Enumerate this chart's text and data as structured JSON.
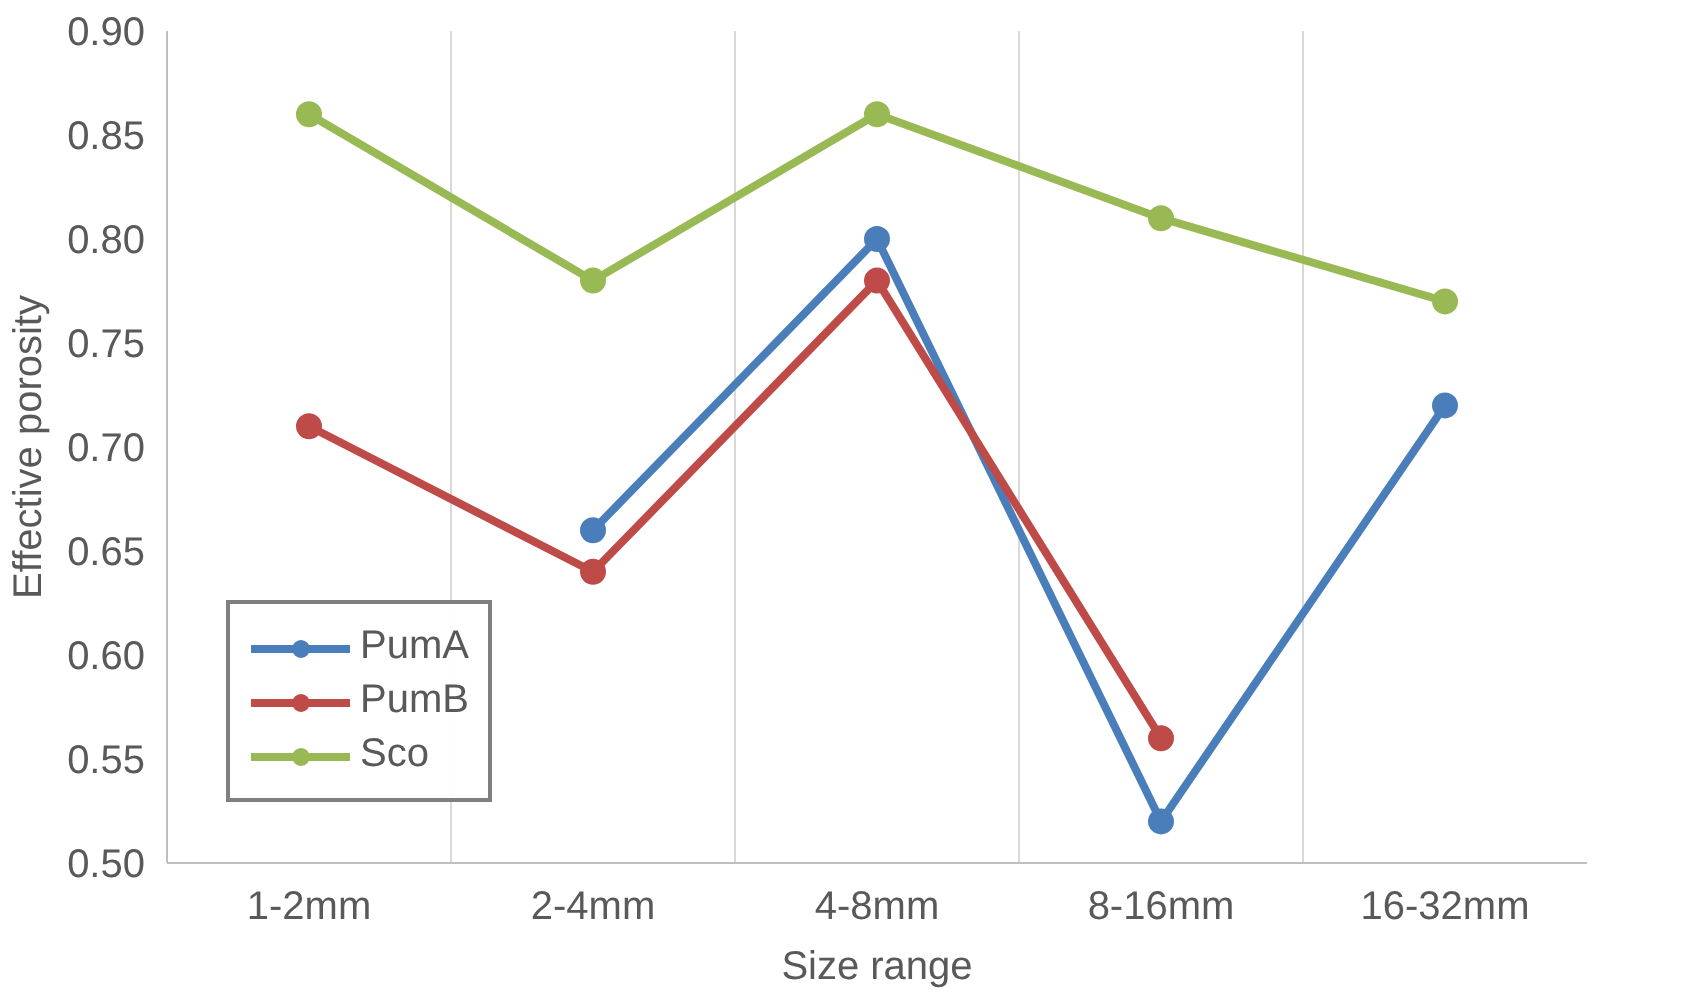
{
  "chart_data": {
    "type": "line",
    "xlabel": "Size range",
    "ylabel": "Effective porosity",
    "categories": [
      "1-2mm",
      "2-4mm",
      "4-8mm",
      "8-16mm",
      "16-32mm"
    ],
    "series": [
      {
        "name": "PumA",
        "color": "#4a7ebb",
        "values": [
          null,
          0.66,
          0.8,
          0.52,
          0.72
        ]
      },
      {
        "name": "PumB",
        "color": "#be4b48",
        "values": [
          0.71,
          0.64,
          0.78,
          0.56,
          null
        ]
      },
      {
        "name": "Sco",
        "color": "#98b954",
        "values": [
          0.86,
          0.78,
          0.86,
          0.81,
          0.77
        ]
      }
    ],
    "ylim": [
      0.5,
      0.9
    ],
    "yticks": [
      {
        "value": 0.5,
        "label": "0.50"
      },
      {
        "value": 0.55,
        "label": "0.55"
      },
      {
        "value": 0.6,
        "label": "0.60"
      },
      {
        "value": 0.65,
        "label": "0.65"
      },
      {
        "value": 0.7,
        "label": "0.70"
      },
      {
        "value": 0.75,
        "label": "0.75"
      },
      {
        "value": 0.8,
        "label": "0.80"
      },
      {
        "value": 0.85,
        "label": "0.85"
      },
      {
        "value": 0.9,
        "label": "0.90"
      }
    ],
    "grid": "x",
    "legend": "bottom left",
    "marker": "circle",
    "line_style": "solid"
  }
}
